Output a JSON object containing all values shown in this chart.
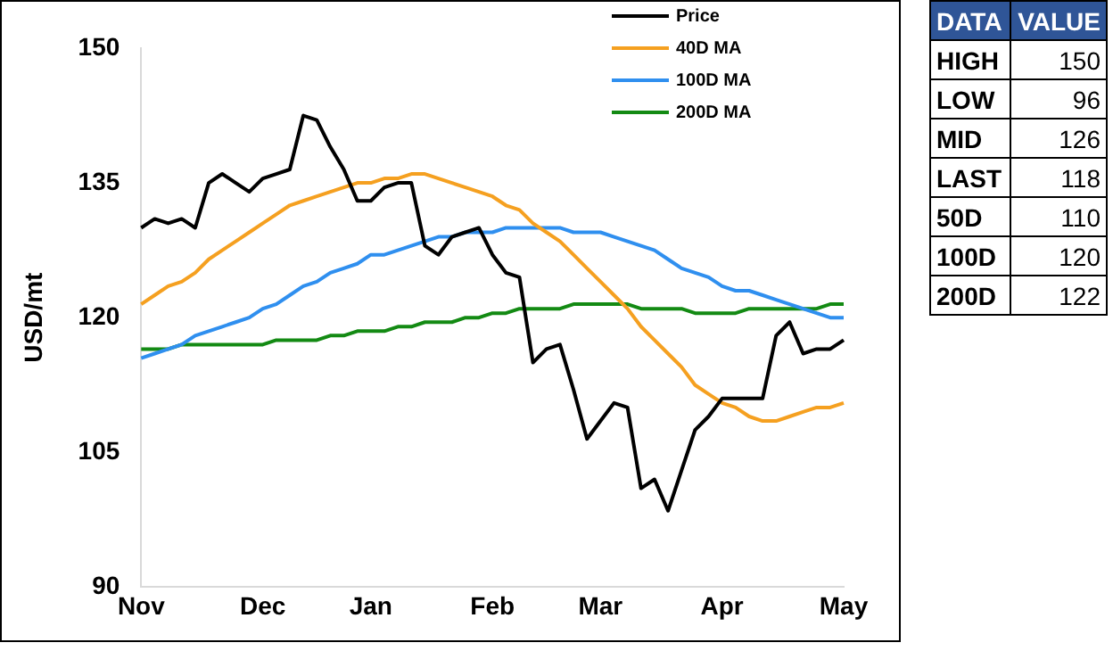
{
  "chart_data": [
    {
      "type": "line",
      "ylabel": "USD/mt",
      "categories": [
        "Nov",
        null,
        null,
        null,
        null,
        null,
        null,
        null,
        null,
        "Dec",
        null,
        null,
        null,
        null,
        null,
        null,
        null,
        "Jan",
        null,
        null,
        null,
        null,
        null,
        null,
        null,
        null,
        "Feb",
        null,
        null,
        null,
        null,
        null,
        null,
        null,
        "Mar",
        null,
        null,
        null,
        null,
        null,
        null,
        null,
        null,
        "Apr",
        null,
        null,
        null,
        null,
        null,
        null,
        null,
        null,
        "May"
      ],
      "ylim": [
        90,
        150
      ],
      "yticks": [
        90,
        105,
        120,
        135,
        150
      ],
      "grid": false,
      "legend": "top right",
      "marker": "none",
      "line_style": "solid",
      "series": [
        {
          "name": "Price",
          "color": "#000000",
          "values": [
            130,
            131,
            130.5,
            131,
            130,
            135,
            136,
            135,
            134,
            135.5,
            136,
            136.5,
            142.5,
            142,
            139,
            136.5,
            133,
            133,
            134.5,
            135,
            135,
            128,
            127,
            129,
            129.5,
            130,
            127,
            125,
            124.5,
            115,
            116.5,
            117,
            112,
            106.5,
            108.5,
            110.5,
            110,
            101,
            102,
            98.5,
            103,
            107.5,
            109,
            111,
            111,
            111,
            111,
            118,
            119.5,
            116,
            116.5,
            116.5,
            117.5
          ]
        },
        {
          "name": "40D MA",
          "color": "#f5a020",
          "values": [
            121.5,
            122.5,
            123.5,
            124,
            125,
            126.5,
            127.5,
            128.5,
            129.5,
            130.5,
            131.5,
            132.5,
            133,
            133.5,
            134,
            134.5,
            135,
            135,
            135.5,
            135.5,
            136,
            136,
            135.5,
            135,
            134.5,
            134,
            133.5,
            132.5,
            132,
            130.5,
            129.5,
            128.5,
            127,
            125.5,
            124,
            122.5,
            121,
            119,
            117.5,
            116,
            114.5,
            112.5,
            111.5,
            110.5,
            110,
            109,
            108.5,
            108.5,
            109,
            109.5,
            110,
            110,
            110.5
          ]
        },
        {
          "name": "100D MA",
          "color": "#2f8fef",
          "values": [
            115.5,
            116,
            116.5,
            117,
            118,
            118.5,
            119,
            119.5,
            120,
            121,
            121.5,
            122.5,
            123.5,
            124,
            125,
            125.5,
            126,
            127,
            127,
            127.5,
            128,
            128.5,
            129,
            129,
            129.5,
            129.5,
            129.5,
            130,
            130,
            130,
            130,
            130,
            129.5,
            129.5,
            129.5,
            129,
            128.5,
            128,
            127.5,
            126.5,
            125.5,
            125,
            124.5,
            123.5,
            123,
            123,
            122.5,
            122,
            121.5,
            121,
            120.5,
            120,
            120
          ]
        },
        {
          "name": "200D MA",
          "color": "#138a13",
          "values": [
            116.5,
            116.5,
            116.5,
            117,
            117,
            117,
            117,
            117,
            117,
            117,
            117.5,
            117.5,
            117.5,
            117.5,
            118,
            118,
            118.5,
            118.5,
            118.5,
            119,
            119,
            119.5,
            119.5,
            119.5,
            120,
            120,
            120.5,
            120.5,
            121,
            121,
            121,
            121,
            121.5,
            121.5,
            121.5,
            121.5,
            121.5,
            121,
            121,
            121,
            121,
            120.5,
            120.5,
            120.5,
            120.5,
            121,
            121,
            121,
            121,
            121,
            121,
            121.5,
            121.5
          ]
        }
      ]
    },
    {
      "type": "other",
      "annotations": [
        "DATA",
        "VALUE",
        "HIGH",
        "150",
        "LOW",
        "96",
        "MID",
        "126",
        "LAST",
        "118",
        "50D",
        "110",
        "100D",
        "120",
        "200D",
        "122"
      ]
    }
  ]
}
